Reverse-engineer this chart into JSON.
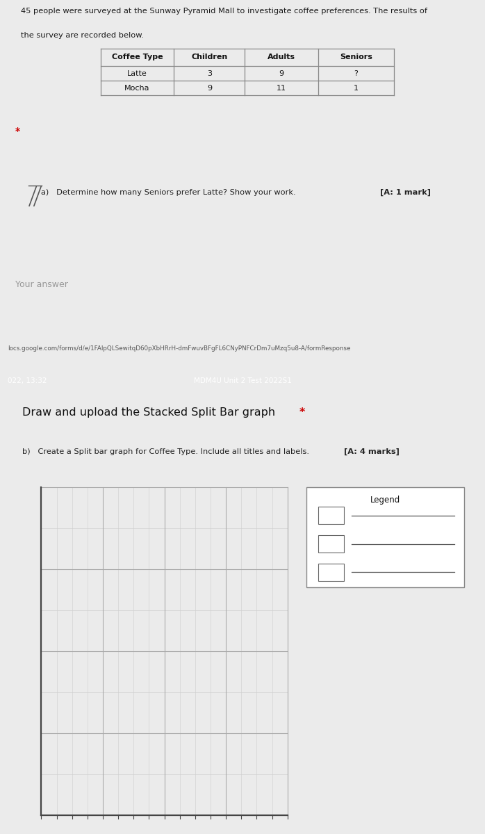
{
  "survey_text_line1": "45 people were surveyed at the Sunway Pyramid Mall to investigate coffee preferences. The results of",
  "survey_text_line2": "the survey are recorded below.",
  "table_headers": [
    "Coffee Type",
    "Children",
    "Adults",
    "Seniors"
  ],
  "table_rows": [
    [
      "Latte",
      "3",
      "9",
      "?"
    ],
    [
      "Mocha",
      "9",
      "11",
      "1"
    ]
  ],
  "star_color": "#cc0000",
  "question_a_text": "a)   Determine how many Seniors prefer Latte? Show your work. [A: 1 mark]",
  "question_a_bold_part": "[A: 1 mark]",
  "your_answer_text": "Your answer",
  "url_text": "locs.google.com/forms/d/e/1FAlpQLSewitqD60pXbHRrH-dmFwuvBFgFL6CNyPNFCrDm7uMzq5u8-A/formResponse",
  "header_bar_text_left": "022, 13:32",
  "header_bar_text_center": "MDM4U Unit 2 Test 2022S1",
  "header_bar_bg": "#222222",
  "header_bar_text_color": "#ffffff",
  "section2_title": "Draw and upload the Stacked Split Bar graph ",
  "section2_star_color": "#cc0000",
  "question_b_text": "b)   Create a Split bar graph for Coffee Type. Include all titles and labels. [A: 4 marks]",
  "legend_title": "Legend",
  "page_bg": "#ebebeb",
  "card_bg": "#ffffff",
  "grid_minor_color": "#d0d0d0",
  "grid_major_color": "#aaaaaa",
  "axis_line_color": "#444444",
  "border_color": "#cccccc",
  "table_border_color": "#888888"
}
